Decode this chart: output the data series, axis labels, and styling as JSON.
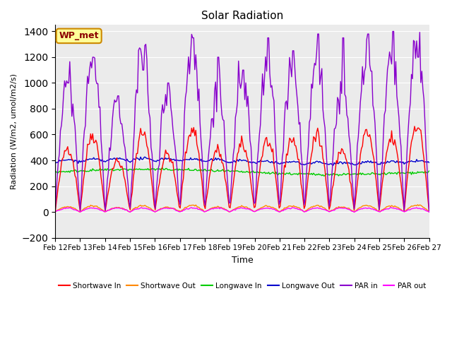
{
  "title": "Solar Radiation",
  "ylabel": "Radiation (W/m2, umol/m2/s)",
  "xlabel": "Time",
  "ylim": [
    -200,
    1450
  ],
  "yticks": [
    -200,
    0,
    200,
    400,
    600,
    800,
    1000,
    1200,
    1400
  ],
  "annotation_text": "WP_met",
  "annotation_bg": "#ffff99",
  "annotation_border": "#cc8800",
  "annotation_text_color": "#8b0000",
  "plot_bg": "#ebebeb",
  "colors": {
    "shortwave_in": "#ff0000",
    "shortwave_out": "#ff8800",
    "longwave_in": "#00cc00",
    "longwave_out": "#0000cc",
    "par_in": "#8800cc",
    "par_out": "#ff00ff"
  },
  "legend": [
    {
      "label": "Shortwave In",
      "color": "#ff0000"
    },
    {
      "label": "Shortwave Out",
      "color": "#ff8800"
    },
    {
      "label": "Longwave In",
      "color": "#00cc00"
    },
    {
      "label": "Longwave Out",
      "color": "#0000cc"
    },
    {
      "label": "PAR in",
      "color": "#8800cc"
    },
    {
      "label": "PAR out",
      "color": "#ff00ff"
    }
  ],
  "x_tick_labels": [
    "Feb 12",
    "Feb 13",
    "Feb 14",
    "Feb 15",
    "Feb 16",
    "Feb 17",
    "Feb 18",
    "Feb 19",
    "Feb 20",
    "Feb 21",
    "Feb 22",
    "Feb 23",
    "Feb 24",
    "Feb 25",
    "Feb 26",
    "Feb 27"
  ],
  "grid_color": "#ffffff",
  "linewidth": 1.0,
  "noise_scale": 0.05
}
